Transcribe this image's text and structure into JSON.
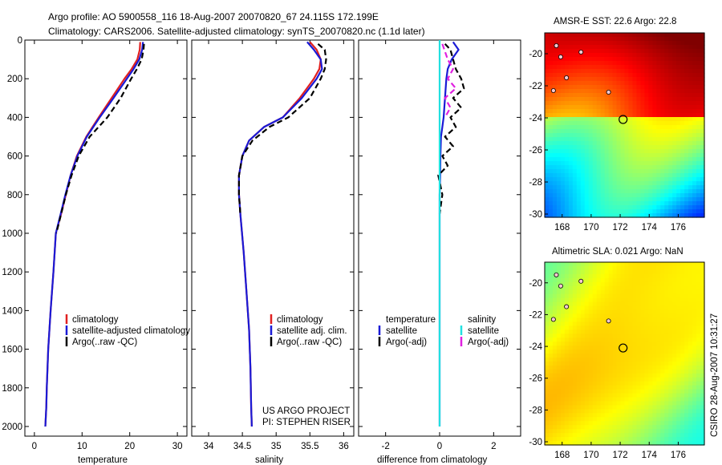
{
  "header": {
    "line1": "Argo profile: AO 5900558_116 18-Aug-2007 20070820_67 24.115S 172.199E",
    "line2": "Climatology: CARS2006. Satellite-adjusted climatology: synTS_20070820.nc (1.1d later)"
  },
  "side_label": "CSIRO 28-Aug-2007 10:31:27",
  "project": {
    "line1": "US ARGO PROJECT",
    "line2": "PI: STEPHEN RISER"
  },
  "colors": {
    "climatology": "#e02020",
    "satellite": "#1a1ad6",
    "argo": "#000000",
    "sal_satellite": "#22e0e0",
    "sal_argo": "#e020e0"
  },
  "chart_data": [
    {
      "type": "line",
      "id": "temperature",
      "xlabel": "temperature",
      "ylabel": "",
      "xlim": [
        -2,
        32
      ],
      "ylim": [
        2050,
        0
      ],
      "xticks": [
        0,
        10,
        20,
        30
      ],
      "yticks": [
        0,
        200,
        400,
        600,
        800,
        1000,
        1200,
        1400,
        1600,
        1800,
        2000
      ],
      "legend": [
        "climatology",
        "satellite-adjusted climatology",
        "Argo(..raw -QC)"
      ],
      "series": [
        {
          "name": "climatology",
          "color": "#e02020",
          "dash": "",
          "x": [
            22.2,
            22.1,
            21.6,
            20.4,
            18.9,
            16.2,
            13.5,
            10.9,
            8.9,
            7.6,
            6.6,
            5.6,
            4.5,
            4.0,
            3.4,
            2.9,
            2.6,
            2.5,
            2.4,
            2.3
          ],
          "y": [
            10,
            50,
            100,
            150,
            200,
            300,
            400,
            500,
            600,
            700,
            800,
            900,
            1000,
            1200,
            1400,
            1600,
            1800,
            1900,
            1950,
            2000
          ]
        },
        {
          "name": "satellite-adjusted climatology",
          "color": "#1a1ad6",
          "dash": "",
          "x": [
            22.8,
            22.6,
            22.0,
            20.8,
            19.4,
            16.6,
            13.7,
            11.0,
            9.0,
            7.6,
            6.5,
            5.5,
            4.5,
            4.0,
            3.4,
            2.9,
            2.6,
            2.5,
            2.4,
            2.3
          ],
          "y": [
            10,
            50,
            100,
            150,
            200,
            300,
            400,
            500,
            600,
            700,
            800,
            900,
            1000,
            1200,
            1400,
            1600,
            1800,
            1900,
            1950,
            2000
          ]
        },
        {
          "name": "Argo(..raw -QC)",
          "color": "#000000",
          "dash": "7,4",
          "x": [
            23.0,
            22.9,
            22.5,
            21.5,
            20.3,
            18.1,
            15.3,
            11.6,
            9.3,
            7.8,
            6.6,
            5.6,
            4.6
          ],
          "y": [
            20,
            50,
            100,
            150,
            200,
            300,
            400,
            500,
            600,
            700,
            800,
            900,
            1000
          ]
        }
      ]
    },
    {
      "type": "line",
      "id": "salinity",
      "xlabel": "salinity",
      "ylabel": "",
      "xlim": [
        33.75,
        36.15
      ],
      "ylim": [
        2050,
        0
      ],
      "xticks": [
        34,
        34.5,
        35,
        35.5,
        36
      ],
      "yticks": [
        0,
        200,
        400,
        600,
        800,
        1000,
        1200,
        1400,
        1600,
        1800,
        2000
      ],
      "legend": [
        "climatology",
        "satellite adj. clim.",
        "Argo(..raw -QC)"
      ],
      "series": [
        {
          "name": "climatology",
          "color": "#e02020",
          "dash": "",
          "x": [
            35.5,
            35.6,
            35.66,
            35.64,
            35.56,
            35.35,
            35.1,
            34.82,
            34.6,
            34.5,
            34.45,
            34.45,
            34.47,
            34.52,
            34.56,
            34.6,
            34.62,
            34.63,
            34.64
          ],
          "y": [
            10,
            50,
            100,
            150,
            200,
            300,
            400,
            450,
            520,
            600,
            700,
            800,
            900,
            1100,
            1300,
            1500,
            1700,
            1900,
            2000
          ]
        },
        {
          "name": "satellite adj. clim.",
          "color": "#1a1ad6",
          "dash": "",
          "x": [
            35.46,
            35.56,
            35.66,
            35.68,
            35.6,
            35.38,
            35.1,
            34.82,
            34.6,
            34.5,
            34.45,
            34.45,
            34.47,
            34.52,
            34.56,
            34.6,
            34.62,
            34.63,
            34.64
          ],
          "y": [
            10,
            50,
            100,
            150,
            200,
            300,
            400,
            450,
            520,
            600,
            700,
            800,
            900,
            1100,
            1300,
            1500,
            1700,
            1900,
            2000
          ]
        },
        {
          "name": "Argo(..raw -QC)",
          "color": "#000000",
          "dash": "7,4",
          "x": [
            35.62,
            35.72,
            35.74,
            35.72,
            35.66,
            35.5,
            35.18,
            34.9,
            34.65,
            34.5,
            34.45,
            34.45,
            34.47
          ],
          "y": [
            20,
            50,
            100,
            150,
            200,
            300,
            400,
            450,
            520,
            600,
            700,
            800,
            900
          ]
        }
      ]
    },
    {
      "type": "line",
      "id": "difference",
      "xlabel": "difference from climatology",
      "ylabel": "",
      "xlim": [
        -3,
        3
      ],
      "ylim": [
        2050,
        0
      ],
      "xticks": [
        -2,
        0,
        2
      ],
      "yticks": [
        0,
        200,
        400,
        600,
        800,
        1000,
        1200,
        1400,
        1600,
        1800,
        2000
      ],
      "legend_groups": [
        {
          "title": "temperature",
          "entries": [
            "satellite",
            "Argo(-adj)"
          ]
        },
        {
          "title": "salinity",
          "entries": [
            "satellite",
            "Argo(-adj)"
          ]
        }
      ],
      "series": [
        {
          "name": "temperature satellite",
          "color": "#1a1ad6",
          "dash": "",
          "x": [
            0.5,
            0.7,
            0.45,
            0.3,
            0.25,
            0.2,
            0.15,
            0.1,
            0.05,
            0.03,
            0.02,
            0,
            0,
            0,
            0
          ],
          "y": [
            10,
            50,
            100,
            150,
            200,
            300,
            400,
            450,
            500,
            600,
            700,
            800,
            1000,
            1500,
            2000
          ]
        },
        {
          "name": "temperature Argo(-adj)",
          "color": "#000000",
          "dash": "7,4",
          "x": [
            0.2,
            0.4,
            0.5,
            0.6,
            0.8,
            0.9,
            0.5,
            0.8,
            0.4,
            0.6,
            0.2,
            0.5,
            0.1,
            0.3,
            -0.05,
            0.1,
            0
          ],
          "y": [
            20,
            50,
            100,
            150,
            200,
            250,
            300,
            350,
            400,
            450,
            500,
            550,
            600,
            650,
            700,
            800,
            900
          ]
        },
        {
          "name": "salinity satellite",
          "color": "#22e0e0",
          "dash": "",
          "x": [
            0,
            0,
            0,
            0,
            0,
            0,
            0,
            0,
            0,
            0,
            0
          ],
          "y": [
            0,
            200,
            400,
            600,
            800,
            1000,
            1200,
            1400,
            1600,
            1800,
            2000
          ]
        },
        {
          "name": "salinity Argo(-adj)",
          "color": "#e020e0",
          "dash": "7,4",
          "x": [
            0.1,
            0.3,
            0.5,
            0.3,
            0.6,
            0.2,
            0.4,
            0.2
          ],
          "y": [
            20,
            100,
            150,
            200,
            250,
            300,
            350,
            400
          ]
        }
      ]
    },
    {
      "type": "heatmap",
      "id": "sst-map",
      "title": "AMSR-E SST: 22.6 Argo: 22.8",
      "xlim": [
        166.8,
        177.8
      ],
      "ylim": [
        -30.2,
        -18.7
      ],
      "xticks": [
        168,
        170,
        172,
        174,
        176
      ],
      "yticks": [
        -20,
        -22,
        -24,
        -26,
        -28,
        -30
      ],
      "marker": {
        "lon": 172.2,
        "lat": -24.1
      }
    },
    {
      "type": "heatmap",
      "id": "sla-map",
      "title": "Altimetric SLA: 0.021 Argo: NaN",
      "xlim": [
        166.8,
        177.8
      ],
      "ylim": [
        -30.2,
        -18.7
      ],
      "xticks": [
        168,
        170,
        172,
        174,
        176
      ],
      "yticks": [
        -20,
        -22,
        -24,
        -26,
        -28,
        -30
      ],
      "marker": {
        "lon": 172.2,
        "lat": -24.1
      }
    }
  ]
}
